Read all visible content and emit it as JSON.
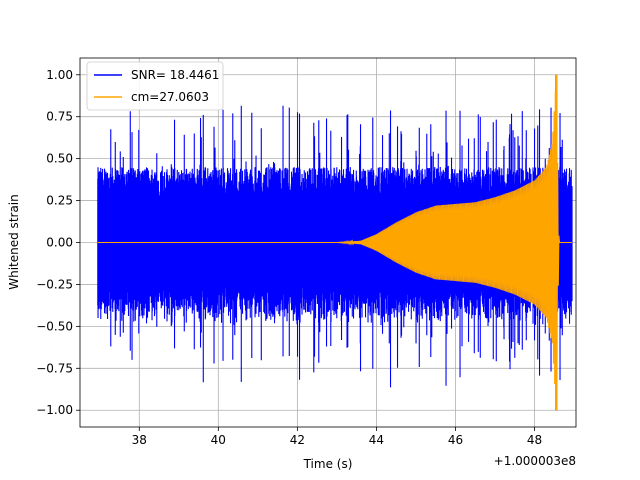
{
  "chart_data": {
    "type": "line",
    "title": "",
    "xlabel": "Time (s)",
    "ylabel": "Whitened strain",
    "x_offset_label": "+1.000003e8",
    "xlim": [
      36.5,
      49.05
    ],
    "ylim": [
      -1.1,
      1.1
    ],
    "xticks": [
      38,
      40,
      42,
      44,
      46,
      48
    ],
    "xtick_labels": [
      "38",
      "40",
      "42",
      "44",
      "46",
      "48"
    ],
    "yticks": [
      -1.0,
      -0.75,
      -0.5,
      -0.25,
      0.0,
      0.25,
      0.5,
      0.75,
      1.0
    ],
    "ytick_labels": [
      "−1.00",
      "−0.75",
      "−0.50",
      "−0.25",
      "0.00",
      "0.25",
      "0.50",
      "0.75",
      "1.00"
    ],
    "grid": true,
    "legend_position": "top-left",
    "series": [
      {
        "name": "SNR= 18.4461",
        "color": "#0000ff",
        "style": "noise-band",
        "x_range": [
          36.95,
          48.95
        ],
        "typical_amplitude": 0.45,
        "peak_amplitude": 0.82,
        "merger_time": 48.55
      },
      {
        "name": "cm=27.0603",
        "color": "#ffa500",
        "style": "chirp",
        "x_range": [
          36.95,
          48.95
        ],
        "merger_time": 48.55,
        "amplitude_points": [
          {
            "x": 43.0,
            "y": 0.0
          },
          {
            "x": 43.6,
            "y": 0.01
          },
          {
            "x": 44.0,
            "y": 0.05
          },
          {
            "x": 44.5,
            "y": 0.12
          },
          {
            "x": 45.0,
            "y": 0.18
          },
          {
            "x": 45.5,
            "y": 0.22
          },
          {
            "x": 46.0,
            "y": 0.23
          },
          {
            "x": 46.5,
            "y": 0.24
          },
          {
            "x": 47.0,
            "y": 0.27
          },
          {
            "x": 47.5,
            "y": 0.31
          },
          {
            "x": 48.0,
            "y": 0.37
          },
          {
            "x": 48.3,
            "y": 0.45
          },
          {
            "x": 48.45,
            "y": 0.6
          },
          {
            "x": 48.55,
            "y": 1.0
          },
          {
            "x": 48.62,
            "y": 0.0
          }
        ]
      }
    ]
  }
}
